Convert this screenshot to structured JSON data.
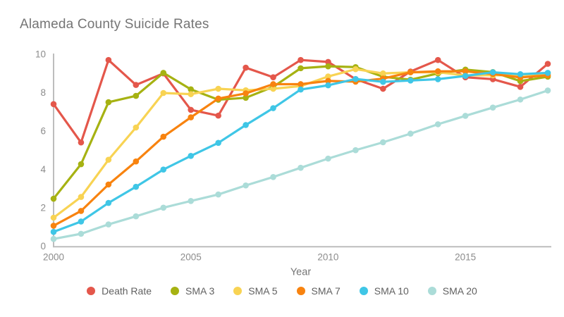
{
  "title": "Alameda County Suicide Rates",
  "colors": {
    "background": "#ffffff",
    "title_text": "#757575",
    "axis_line": "#bdbdbd",
    "tick_text": "#8c8c8c",
    "axis_title_text": "#757575",
    "legend_text": "#616161",
    "death_rate": "#e4574b",
    "sma3": "#a6b212",
    "sma5": "#f8d353",
    "sma7": "#f8830f",
    "sma10": "#3fc6e6",
    "sma20": "#abdcd8"
  },
  "legend": [
    {
      "label": "Death Rate",
      "color": "#e4574b"
    },
    {
      "label": "SMA 3",
      "color": "#a6b212"
    },
    {
      "label": "SMA 5",
      "color": "#f8d353"
    },
    {
      "label": "SMA 7",
      "color": "#f8830f"
    },
    {
      "label": "SMA 10",
      "color": "#3fc6e6"
    },
    {
      "label": "SMA 20",
      "color": "#abdcd8"
    }
  ],
  "chart_data": {
    "type": "line",
    "title": "Alameda County Suicide Rates",
    "xlabel": "Year",
    "ylabel": "",
    "x": [
      2000,
      2001,
      2002,
      2003,
      2004,
      2005,
      2006,
      2007,
      2008,
      2009,
      2010,
      2011,
      2012,
      2013,
      2014,
      2015,
      2016,
      2017,
      2018
    ],
    "xticks": [
      2000,
      2005,
      2010,
      2015
    ],
    "yticks": [
      0,
      2,
      4,
      6,
      8,
      10
    ],
    "ylim": [
      0,
      10
    ],
    "xlim": [
      2000,
      2018
    ],
    "grid": false,
    "legend_position": "bottom",
    "markers": true,
    "series": [
      {
        "name": "Death Rate",
        "color": "#e4574b",
        "values": [
          7.4,
          5.4,
          9.7,
          8.4,
          9.0,
          7.1,
          6.8,
          9.3,
          8.8,
          9.7,
          9.6,
          8.7,
          8.2,
          9.1,
          9.7,
          8.8,
          8.7,
          8.3,
          9.5
        ]
      },
      {
        "name": "SMA 3",
        "color": "#a6b212",
        "values": [
          2.47,
          4.27,
          7.5,
          7.83,
          9.03,
          8.17,
          7.63,
          7.73,
          8.3,
          9.27,
          9.37,
          9.33,
          8.83,
          8.67,
          9.0,
          9.2,
          9.07,
          8.6,
          8.83
        ]
      },
      {
        "name": "SMA 5",
        "color": "#f8d353",
        "values": [
          1.48,
          2.56,
          4.5,
          6.18,
          7.98,
          7.92,
          8.2,
          8.12,
          8.2,
          8.34,
          8.84,
          9.22,
          9.0,
          9.06,
          9.06,
          8.9,
          8.9,
          8.92,
          9.0
        ]
      },
      {
        "name": "SMA 7",
        "color": "#f8830f",
        "values": [
          1.06,
          1.83,
          3.21,
          4.41,
          5.7,
          6.71,
          7.69,
          7.96,
          8.44,
          8.44,
          8.61,
          8.57,
          8.73,
          9.06,
          9.11,
          9.11,
          8.97,
          8.79,
          8.9
        ]
      },
      {
        "name": "SMA 10",
        "color": "#3fc6e6",
        "values": [
          0.74,
          1.28,
          2.25,
          3.09,
          3.99,
          4.7,
          5.38,
          6.31,
          7.19,
          8.16,
          8.38,
          8.71,
          8.56,
          8.63,
          8.7,
          8.87,
          9.06,
          8.96,
          9.03
        ]
      },
      {
        "name": "SMA 20",
        "color": "#abdcd8",
        "values": [
          0.37,
          0.64,
          1.13,
          1.55,
          2.0,
          2.35,
          2.69,
          3.16,
          3.6,
          4.08,
          4.56,
          5.0,
          5.41,
          5.86,
          6.35,
          6.79,
          7.22,
          7.64,
          8.11
        ]
      }
    ]
  }
}
